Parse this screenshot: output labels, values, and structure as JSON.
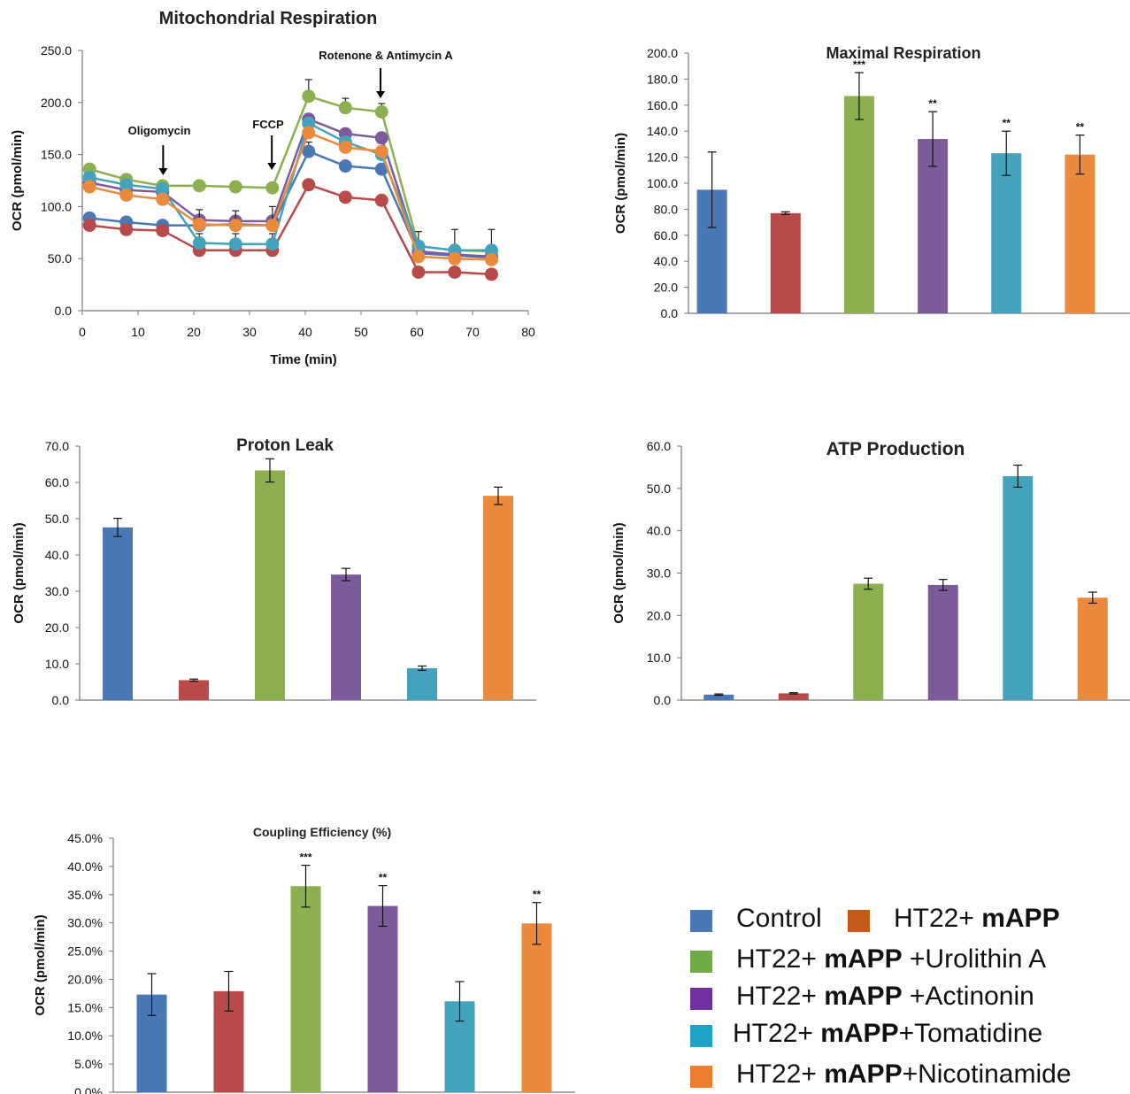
{
  "colors": {
    "control": "#4a78b5",
    "mapp": "#b84a4a",
    "urolithin": "#8cb050",
    "actinonin": "#7b5b9a",
    "tomatidine": "#43a3bd",
    "nicotinamide": "#ea8a3c",
    "legend_mapp": "#c55a1a",
    "legend_urolithin": "#6faa45",
    "legend_actinonin": "#7030a0",
    "legend_tomatidine": "#1ea3c8",
    "legend_nicotinamide": "#ed7d31"
  },
  "chart_data": [
    {
      "type": "line",
      "title": "Mitochondrial Respiration",
      "xlabel": "Time (min)",
      "ylabel": "OCR (pmol/min)",
      "xlim": [
        0,
        80
      ],
      "ylim": [
        0,
        250
      ],
      "x_ticks": [
        "0",
        "10",
        "20",
        "30",
        "40",
        "50",
        "60",
        "70",
        "80"
      ],
      "y_ticks": [
        "0.0",
        "50.0",
        "100.0",
        "150.0",
        "200.0",
        "250.0"
      ],
      "annotations": [
        "Oligomycin",
        "FCCP",
        "Rotenone & Antimycin A"
      ],
      "annotation_x": [
        14.5,
        34,
        53.5
      ],
      "x": [
        1.3,
        7.9,
        14.4,
        21,
        27.5,
        34.1,
        40.6,
        47.2,
        53.7,
        60.3,
        66.8,
        73.4
      ],
      "series": [
        {
          "color_key": "control",
          "values": [
            89,
            85,
            82,
            82,
            83,
            82,
            153,
            139,
            136,
            55,
            53,
            51
          ],
          "err": [
            0,
            0,
            0,
            0,
            0,
            0,
            9,
            0,
            0,
            0,
            0,
            0
          ]
        },
        {
          "color_key": "mapp",
          "values": [
            82,
            78,
            77,
            58,
            58,
            58,
            121,
            109,
            106,
            37,
            37,
            35
          ],
          "err": [
            0,
            0,
            0,
            16,
            16,
            16,
            0,
            0,
            0,
            0,
            0,
            0
          ]
        },
        {
          "color_key": "urolithin",
          "values": [
            136,
            126,
            120,
            120,
            119,
            118,
            206,
            195,
            191,
            62,
            58,
            57
          ],
          "err": [
            0,
            0,
            0,
            0,
            0,
            0,
            16,
            9,
            8,
            0,
            0,
            0
          ]
        },
        {
          "color_key": "actinonin",
          "values": [
            123,
            116,
            114,
            87,
            86,
            86,
            184,
            170,
            166,
            57,
            54,
            52
          ],
          "err": [
            0,
            0,
            0,
            0,
            0,
            0,
            0,
            0,
            0,
            0,
            0,
            0
          ]
        },
        {
          "color_key": "tomatidine",
          "values": [
            128,
            121,
            117,
            65,
            64,
            64,
            180,
            162,
            150,
            62,
            58,
            58
          ],
          "err": [
            0,
            0,
            0,
            0,
            0,
            0,
            0,
            0,
            0,
            14,
            20,
            20
          ]
        },
        {
          "color_key": "nicotinamide",
          "values": [
            119,
            111,
            107,
            83,
            82,
            82,
            171,
            157,
            153,
            52,
            50,
            49
          ],
          "err": [
            0,
            0,
            0,
            14,
            14,
            18,
            0,
            0,
            0,
            0,
            0,
            0
          ]
        }
      ]
    },
    {
      "type": "bar",
      "title": "Maximal Respiration",
      "ylabel": "OCR (pmol/min)",
      "ylim": [
        0,
        200
      ],
      "y_ticks": [
        "0.0",
        "20.0",
        "40.0",
        "60.0",
        "80.0",
        "100.0",
        "120.0",
        "140.0",
        "160.0",
        "180.0",
        "200.0"
      ],
      "color_keys": [
        "control",
        "mapp",
        "urolithin",
        "actinonin",
        "tomatidine",
        "nicotinamide"
      ],
      "values": [
        95,
        77,
        167,
        134,
        123,
        122
      ],
      "err": [
        29,
        1,
        18,
        21,
        17,
        15
      ],
      "significance": [
        "",
        "",
        "***",
        "**",
        "**",
        "**"
      ]
    },
    {
      "type": "bar",
      "title": "Proton Leak",
      "ylabel": "OCR (pmol/min)",
      "ylim": [
        0,
        70
      ],
      "y_ticks": [
        "0.0",
        "10.0",
        "20.0",
        "30.0",
        "40.0",
        "50.0",
        "60.0",
        "70.0"
      ],
      "color_keys": [
        "control",
        "mapp",
        "urolithin",
        "actinonin",
        "tomatidine",
        "nicotinamide"
      ],
      "values": [
        47.6,
        5.5,
        63.3,
        34.6,
        8.8,
        56.3
      ],
      "err": [
        2.5,
        0.3,
        3.2,
        1.7,
        0.6,
        2.4
      ],
      "significance": [
        "",
        "",
        "",
        "",
        "",
        ""
      ]
    },
    {
      "type": "bar",
      "title": "ATP Production",
      "ylabel": "OCR (pmol/min)",
      "ylim": [
        0,
        60
      ],
      "y_ticks": [
        "0.0",
        "10.0",
        "20.0",
        "30.0",
        "40.0",
        "50.0",
        "60.0"
      ],
      "color_keys": [
        "control",
        "mapp",
        "urolithin",
        "actinonin",
        "tomatidine",
        "nicotinamide"
      ],
      "values": [
        1.3,
        1.6,
        27.5,
        27.2,
        52.9,
        24.2
      ],
      "err": [
        0.15,
        0.15,
        1.3,
        1.3,
        2.6,
        1.3
      ],
      "significance": [
        "",
        "",
        "",
        "",
        "",
        ""
      ]
    },
    {
      "type": "bar",
      "title": "Coupling Efficiency (%)",
      "ylabel": "OCR (pmol/min)",
      "ylim": [
        0,
        0.45
      ],
      "y_ticks": [
        "0.0%",
        "5.0%",
        "10.0%",
        "15.0%",
        "20.0%",
        "25.0%",
        "30.0%",
        "35.0%",
        "40.0%",
        "45.0%"
      ],
      "color_keys": [
        "control",
        "mapp",
        "urolithin",
        "actinonin",
        "tomatidine",
        "nicotinamide"
      ],
      "values": [
        0.173,
        0.179,
        0.365,
        0.33,
        0.161,
        0.299
      ],
      "err": [
        0.037,
        0.035,
        0.037,
        0.036,
        0.035,
        0.037
      ],
      "significance": [
        "",
        "",
        "***",
        "**",
        "",
        "**"
      ]
    }
  ],
  "legend": {
    "control": "Control",
    "mapp": {
      "prefix": "HT22+ ",
      "bold": "mAPP",
      "suffix": ""
    },
    "urolithin": {
      "prefix": "HT22+ ",
      "bold": "mAPP",
      "suffix": " +Urolithin A"
    },
    "actinonin": {
      "prefix": "HT22+ ",
      "bold": "mAPP",
      "suffix": " +Actinonin"
    },
    "tomatidine": {
      "prefix": "HT22+ ",
      "bold": "mAPP",
      "suffix": "+Tomatidine"
    },
    "nicotinamide": {
      "prefix": "HT22+ ",
      "bold": "mAPP",
      "suffix": "+Nicotinamide"
    }
  }
}
